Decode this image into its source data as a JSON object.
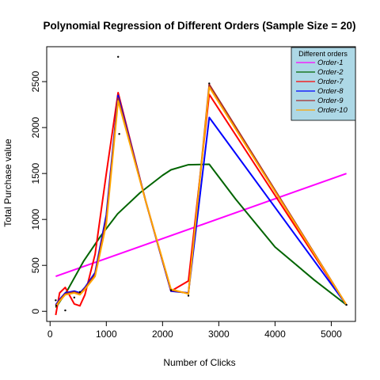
{
  "chart_data": {
    "type": "line",
    "title": "Polynomial Regression of Different Orders (Sample Size = 20)",
    "xlabel": "Number of Clicks",
    "ylabel": "Total Purchase value",
    "xlim": [
      -60,
      5430
    ],
    "ylim": [
      -110,
      2880
    ],
    "x_ticks": [
      0,
      1000,
      2000,
      3000,
      4000,
      5000
    ],
    "y_ticks": [
      0,
      500,
      1000,
      1500,
      2000,
      2500
    ],
    "legend": {
      "title": "Different orders",
      "position": "top-right",
      "background": "#add8e6"
    },
    "points": [
      {
        "x": 1210,
        "y": 2770
      },
      {
        "x": 1230,
        "y": 1930
      },
      {
        "x": 2830,
        "y": 2480
      },
      {
        "x": 100,
        "y": 120
      },
      {
        "x": 110,
        "y": 60
      },
      {
        "x": 270,
        "y": 10
      },
      {
        "x": 430,
        "y": 150
      },
      {
        "x": 530,
        "y": 210
      },
      {
        "x": 2150,
        "y": 230
      },
      {
        "x": 2460,
        "y": 170
      },
      {
        "x": 5270,
        "y": 70
      }
    ],
    "series": [
      {
        "name": "Order-1",
        "color": "#ff00ff",
        "x": [
          100,
          5270
        ],
        "y": [
          380,
          1500
        ]
      },
      {
        "name": "Order-2",
        "color": "#006400",
        "x": [
          100,
          300,
          600,
          900,
          1200,
          1600,
          2000,
          2150,
          2460,
          2830,
          3300,
          4000,
          4700,
          5270
        ],
        "y": [
          40,
          220,
          550,
          820,
          1060,
          1290,
          1480,
          1540,
          1595,
          1600,
          1220,
          700,
          340,
          70
        ]
      },
      {
        "name": "Order-7",
        "color": "#ff0000",
        "x": [
          100,
          170,
          270,
          430,
          530,
          620,
          800,
          1000,
          1210,
          1700,
          2150,
          2460,
          2830,
          5270
        ],
        "y": [
          -40,
          200,
          260,
          80,
          60,
          180,
          620,
          1500,
          2380,
          1200,
          220,
          330,
          2360,
          70
        ]
      },
      {
        "name": "Order-8",
        "color": "#0000ff",
        "x": [
          100,
          170,
          270,
          430,
          530,
          620,
          800,
          1000,
          1210,
          1700,
          2150,
          2460,
          2830,
          5270
        ],
        "y": [
          70,
          130,
          200,
          220,
          200,
          260,
          420,
          1050,
          2350,
          1200,
          220,
          200,
          2110,
          70
        ]
      },
      {
        "name": "Order-9",
        "color": "#a52a2a",
        "x": [
          100,
          170,
          270,
          430,
          530,
          620,
          800,
          1000,
          1210,
          1700,
          2150,
          2460,
          2830,
          5270
        ],
        "y": [
          60,
          120,
          190,
          210,
          190,
          250,
          400,
          1000,
          2320,
          1200,
          230,
          195,
          2470,
          70
        ]
      },
      {
        "name": "Order-10",
        "color": "#ffa500",
        "x": [
          100,
          170,
          270,
          430,
          530,
          620,
          800,
          1000,
          1210,
          1700,
          2150,
          2460,
          2830,
          5270
        ],
        "y": [
          50,
          110,
          180,
          200,
          180,
          240,
          380,
          950,
          2290,
          1200,
          240,
          190,
          2440,
          70
        ]
      }
    ]
  }
}
